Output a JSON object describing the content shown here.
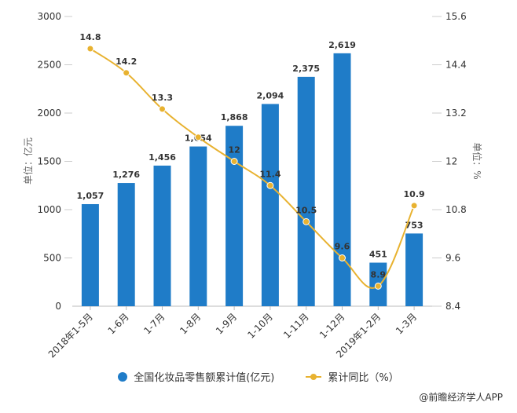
{
  "chart_data": {
    "type": "bar+line",
    "categories": [
      "2018年1-5月",
      "1-6月",
      "1-7月",
      "1-8月",
      "1-9月",
      "1-10月",
      "1-11月",
      "1-12月",
      "2019年1-2月",
      "1-3月"
    ],
    "series": [
      {
        "name": "全国化妆品零售额累计值(亿元)",
        "type": "bar",
        "axis": "left",
        "color": "#1f7cc8",
        "values": [
          1057,
          1276,
          1456,
          1654,
          1868,
          2094,
          2375,
          2619,
          451,
          753
        ],
        "labels": [
          "1,057",
          "1,276",
          "1,456",
          "1,654",
          "1,868",
          "2,094",
          "2,375",
          "2,619",
          "451",
          "753"
        ]
      },
      {
        "name": "累计同比（%）",
        "type": "line",
        "axis": "right",
        "color": "#e8b230",
        "values": [
          14.8,
          14.2,
          13.3,
          12.6,
          12,
          11.4,
          10.5,
          9.6,
          8.9,
          10.9
        ],
        "labels": [
          "14.8",
          "14.2",
          "13.3",
          "",
          "12",
          "11.4",
          "10.5",
          "9.6",
          "8.9",
          "10.9"
        ]
      }
    ],
    "left_axis": {
      "label": "单位：亿元",
      "range": [
        0,
        3000
      ],
      "ticks": [
        "0",
        "500",
        "1000",
        "1500",
        "2000",
        "2500",
        "3000"
      ]
    },
    "right_axis": {
      "label": "单位：%",
      "range": [
        8.4,
        15.6
      ],
      "ticks": [
        "8.4",
        "9.6",
        "10.8",
        "12",
        "13.2",
        "14.4",
        "15.6"
      ]
    },
    "grid": false,
    "legend_position": "bottom"
  },
  "legend": {
    "bar": "全国化妆品零售额累计值(亿元)",
    "line": "累计同比（%）"
  },
  "source": "@前瞻经济学人APP"
}
